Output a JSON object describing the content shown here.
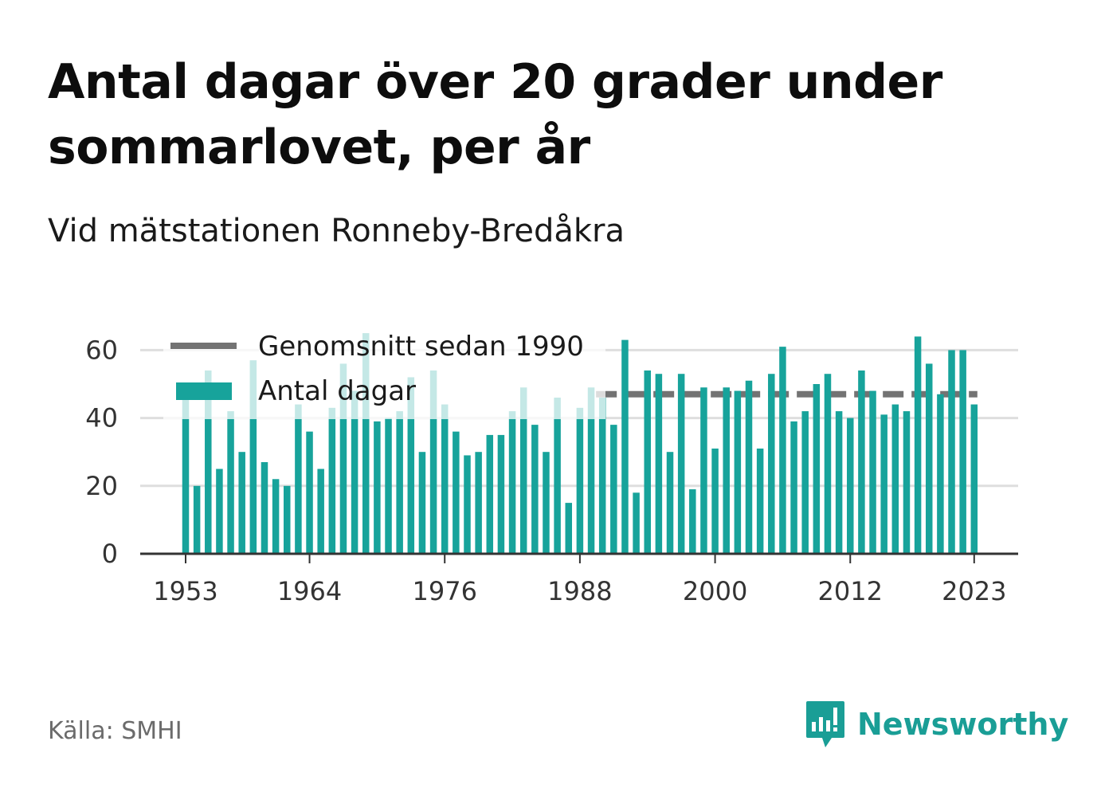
{
  "title": "Antal dagar över 20 grader under sommarlovet, per år",
  "subtitle": "Vid mätstationen Ronneby-Bredåkra",
  "source": "Källa: SMHI",
  "brand": {
    "name": "Newsworthy",
    "icon": "newsworthy-logo-icon",
    "color": "#1a9e96"
  },
  "colors": {
    "bars": "#17a39b",
    "average": "#737373",
    "grid": "#dedede",
    "axis": "#333333"
  },
  "chart_data": {
    "type": "bar",
    "title": "Antal dagar över 20 grader under sommarlovet, per år",
    "xlabel": "",
    "ylabel": "",
    "ylim": [
      0,
      65
    ],
    "yticks": [
      0,
      20,
      40,
      60
    ],
    "xticks": [
      1953,
      1964,
      1976,
      1988,
      2000,
      2012,
      2023
    ],
    "grid": true,
    "legend_position": "top-left",
    "categories": [
      1953,
      1954,
      1955,
      1956,
      1957,
      1958,
      1959,
      1960,
      1961,
      1962,
      1963,
      1964,
      1965,
      1966,
      1967,
      1968,
      1969,
      1970,
      1971,
      1972,
      1973,
      1974,
      1975,
      1976,
      1977,
      1978,
      1979,
      1980,
      1981,
      1982,
      1983,
      1984,
      1985,
      1986,
      1987,
      1988,
      1989,
      1990,
      1991,
      1992,
      1993,
      1994,
      1995,
      1996,
      1997,
      1998,
      1999,
      2000,
      2001,
      2002,
      2003,
      2004,
      2005,
      2006,
      2007,
      2008,
      2009,
      2010,
      2011,
      2012,
      2013,
      2014,
      2015,
      2016,
      2017,
      2018,
      2019,
      2020,
      2021,
      2022,
      2023
    ],
    "series": [
      {
        "name": "Antal dagar",
        "type": "bar",
        "values": [
          46,
          20,
          54,
          25,
          42,
          30,
          57,
          27,
          22,
          20,
          44,
          36,
          25,
          43,
          56,
          48,
          65,
          39,
          40,
          42,
          52,
          30,
          54,
          44,
          36,
          29,
          30,
          35,
          35,
          42,
          49,
          38,
          30,
          46,
          15,
          43,
          49,
          46,
          38,
          63,
          18,
          54,
          53,
          30,
          53,
          19,
          49,
          31,
          49,
          48,
          51,
          31,
          53,
          61,
          39,
          42,
          50,
          53,
          42,
          40,
          54,
          48,
          41,
          44,
          42,
          64,
          56,
          47,
          60,
          60,
          44
        ]
      },
      {
        "name": "Genomsnitt sedan 1990",
        "type": "line",
        "start": 1990,
        "end": 2023,
        "value": 47
      }
    ]
  }
}
